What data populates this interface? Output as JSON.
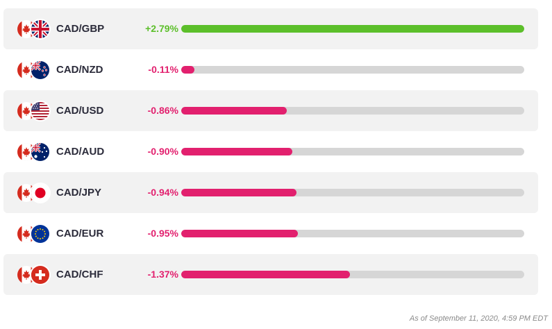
{
  "colors": {
    "positive": "#5cbf2a",
    "negative": "#e2206e",
    "track": "#d6d6d6"
  },
  "rows": [
    {
      "pair": "CAD/GBP",
      "change": "+2.79%",
      "fill_fraction": 1.0,
      "direction": "positive",
      "flag_icon": "uk-flag-icon"
    },
    {
      "pair": "CAD/NZD",
      "change": "-0.11%",
      "fill_fraction": 0.039,
      "direction": "negative",
      "flag_icon": "new-zealand-flag-icon"
    },
    {
      "pair": "CAD/USD",
      "change": "-0.86%",
      "fill_fraction": 0.308,
      "direction": "negative",
      "flag_icon": "us-flag-icon"
    },
    {
      "pair": "CAD/AUD",
      "change": "-0.90%",
      "fill_fraction": 0.323,
      "direction": "negative",
      "flag_icon": "australia-flag-icon"
    },
    {
      "pair": "CAD/JPY",
      "change": "-0.94%",
      "fill_fraction": 0.337,
      "direction": "negative",
      "flag_icon": "japan-flag-icon"
    },
    {
      "pair": "CAD/EUR",
      "change": "-0.95%",
      "fill_fraction": 0.34,
      "direction": "negative",
      "flag_icon": "eu-flag-icon"
    },
    {
      "pair": "CAD/CHF",
      "change": "-1.37%",
      "fill_fraction": 0.491,
      "direction": "negative",
      "flag_icon": "switzerland-flag-icon"
    }
  ],
  "base_flag_icon": "canada-flag-icon",
  "footer": {
    "timestamp": "As of September 11, 2020, 4:59 PM EDT"
  }
}
